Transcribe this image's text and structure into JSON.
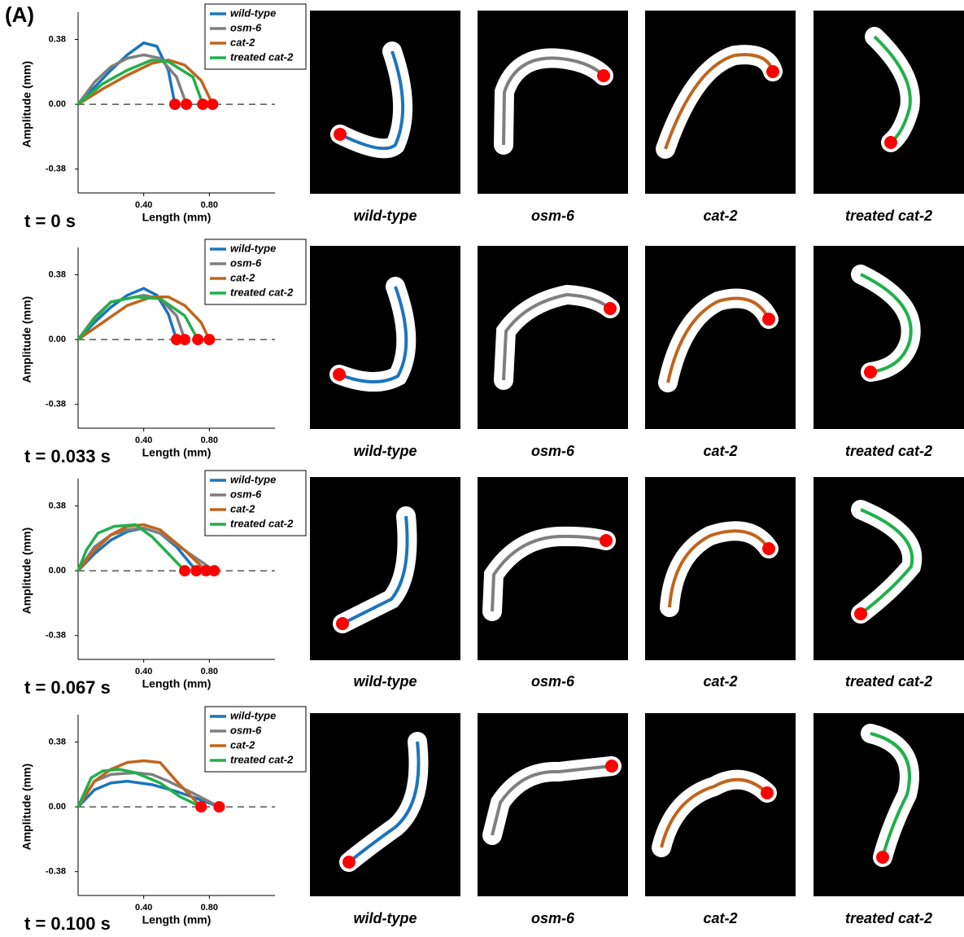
{
  "panel_label": "(A)",
  "chart_data": [
    {
      "type": "line",
      "annotation": "t = 0 s",
      "x_label": "Length (mm)",
      "y_label": "Amplitude (mm)",
      "xlim": [
        0,
        1.2
      ],
      "ylim": [
        -0.52,
        0.54
      ],
      "xticks": [
        {
          "value": 0.4,
          "label": "0.40"
        },
        {
          "value": 0.8,
          "label": "0.80"
        }
      ],
      "yticks": [
        -0.38,
        {
          "value": 0,
          "label": "0.00"
        },
        0.38
      ],
      "legend": "upper right",
      "series": [
        {
          "name": "wild-type",
          "color": "#1b75bc",
          "x": [
            0,
            0.1,
            0.2,
            0.3,
            0.4,
            0.48,
            0.55,
            0.59
          ],
          "values": [
            0,
            0.1,
            0.2,
            0.29,
            0.36,
            0.34,
            0.2,
            0
          ]
        },
        {
          "name": "osm-6",
          "color": "#7f7f7f",
          "x": [
            0,
            0.1,
            0.2,
            0.3,
            0.4,
            0.5,
            0.6,
            0.66
          ],
          "values": [
            0,
            0.13,
            0.22,
            0.27,
            0.29,
            0.27,
            0.16,
            0
          ]
        },
        {
          "name": "cat-2",
          "color": "#c0651d",
          "x": [
            0,
            0.15,
            0.3,
            0.45,
            0.55,
            0.65,
            0.75,
            0.82
          ],
          "values": [
            0,
            0.09,
            0.17,
            0.24,
            0.26,
            0.23,
            0.14,
            0
          ]
        },
        {
          "name": "treated cat-2",
          "color": "#21b04b",
          "x": [
            0,
            0.15,
            0.3,
            0.45,
            0.55,
            0.7,
            0.76
          ],
          "values": [
            0,
            0.12,
            0.2,
            0.26,
            0.25,
            0.16,
            0
          ]
        }
      ]
    },
    {
      "type": "line",
      "annotation": "t = 0.033 s",
      "x_label": "Length (mm)",
      "y_label": "Amplitude (mm)",
      "xlim": [
        0,
        1.2
      ],
      "ylim": [
        -0.52,
        0.54
      ],
      "xticks": [
        {
          "value": 0.4,
          "label": "0.40"
        },
        {
          "value": 0.8,
          "label": "0.80"
        }
      ],
      "yticks": [
        -0.38,
        {
          "value": 0,
          "label": "0.00"
        },
        0.38
      ],
      "legend": "upper right",
      "series": [
        {
          "name": "wild-type",
          "color": "#1b75bc",
          "x": [
            0,
            0.1,
            0.2,
            0.3,
            0.4,
            0.48,
            0.55,
            0.6
          ],
          "values": [
            0,
            0.1,
            0.19,
            0.26,
            0.3,
            0.26,
            0.15,
            0
          ]
        },
        {
          "name": "osm-6",
          "color": "#7f7f7f",
          "x": [
            0,
            0.1,
            0.2,
            0.3,
            0.4,
            0.5,
            0.6,
            0.65
          ],
          "values": [
            0,
            0.13,
            0.22,
            0.24,
            0.26,
            0.24,
            0.14,
            0
          ]
        },
        {
          "name": "cat-2",
          "color": "#c0651d",
          "x": [
            0,
            0.15,
            0.3,
            0.45,
            0.55,
            0.65,
            0.75,
            0.8
          ],
          "values": [
            0,
            0.1,
            0.2,
            0.25,
            0.25,
            0.2,
            0.1,
            0
          ]
        },
        {
          "name": "treated cat-2",
          "color": "#21b04b",
          "x": [
            0,
            0.1,
            0.2,
            0.35,
            0.5,
            0.65,
            0.73
          ],
          "values": [
            0,
            0.12,
            0.22,
            0.25,
            0.24,
            0.14,
            0
          ]
        }
      ]
    },
    {
      "type": "line",
      "annotation": "t = 0.067 s",
      "x_label": "Length (mm)",
      "y_label": "Amplitude (mm)",
      "xlim": [
        0,
        1.2
      ],
      "ylim": [
        -0.52,
        0.54
      ],
      "xticks": [
        {
          "value": 0.4,
          "label": "0.40"
        },
        {
          "value": 0.8,
          "label": "0.80"
        }
      ],
      "yticks": [
        -0.38,
        {
          "value": 0,
          "label": "0.00"
        },
        0.38
      ],
      "legend": "upper right",
      "series": [
        {
          "name": "wild-type",
          "color": "#1b75bc",
          "x": [
            0,
            0.1,
            0.2,
            0.3,
            0.4,
            0.5,
            0.6,
            0.72
          ],
          "values": [
            0,
            0.1,
            0.18,
            0.23,
            0.25,
            0.22,
            0.14,
            0
          ]
        },
        {
          "name": "osm-6",
          "color": "#7f7f7f",
          "x": [
            0,
            0.1,
            0.2,
            0.3,
            0.4,
            0.5,
            0.65,
            0.83
          ],
          "values": [
            0,
            0.14,
            0.21,
            0.24,
            0.25,
            0.22,
            0.12,
            0
          ]
        },
        {
          "name": "cat-2",
          "color": "#c0651d",
          "x": [
            0,
            0.1,
            0.2,
            0.3,
            0.4,
            0.5,
            0.65,
            0.78
          ],
          "values": [
            0,
            0.12,
            0.21,
            0.26,
            0.27,
            0.24,
            0.12,
            0
          ]
        },
        {
          "name": "treated cat-2",
          "color": "#21b04b",
          "x": [
            0,
            0.05,
            0.12,
            0.22,
            0.35,
            0.45,
            0.55,
            0.65
          ],
          "values": [
            0,
            0.12,
            0.22,
            0.26,
            0.27,
            0.2,
            0.1,
            0
          ]
        }
      ]
    },
    {
      "type": "line",
      "annotation": "t = 0.100 s",
      "x_label": "Length (mm)",
      "y_label": "Amplitude (mm)",
      "xlim": [
        0,
        1.2
      ],
      "ylim": [
        -0.52,
        0.54
      ],
      "xticks": [
        {
          "value": 0.4,
          "label": "0.40"
        },
        {
          "value": 0.8,
          "label": "0.80"
        }
      ],
      "yticks": [
        -0.38,
        {
          "value": 0,
          "label": "0.00"
        },
        0.38
      ],
      "legend": "upper right",
      "series": [
        {
          "name": "wild-type",
          "color": "#1b75bc",
          "x": [
            0,
            0.1,
            0.2,
            0.3,
            0.45,
            0.6,
            0.75,
            0.86
          ],
          "values": [
            0,
            0.1,
            0.14,
            0.15,
            0.13,
            0.09,
            0.04,
            0
          ]
        },
        {
          "name": "osm-6",
          "color": "#7f7f7f",
          "x": [
            0,
            0.1,
            0.2,
            0.35,
            0.45,
            0.55,
            0.7,
            0.86
          ],
          "values": [
            0,
            0.15,
            0.19,
            0.2,
            0.19,
            0.15,
            0.08,
            0
          ]
        },
        {
          "name": "cat-2",
          "color": "#c0651d",
          "x": [
            0,
            0.1,
            0.2,
            0.3,
            0.4,
            0.5,
            0.6,
            0.75
          ],
          "values": [
            0,
            0.15,
            0.22,
            0.26,
            0.27,
            0.26,
            0.15,
            0
          ]
        },
        {
          "name": "treated cat-2",
          "color": "#21b04b",
          "x": [
            0,
            0.08,
            0.15,
            0.25,
            0.35,
            0.5,
            0.62,
            0.75
          ],
          "values": [
            0,
            0.17,
            0.21,
            0.22,
            0.2,
            0.14,
            0.06,
            0
          ]
        }
      ]
    }
  ]
}
